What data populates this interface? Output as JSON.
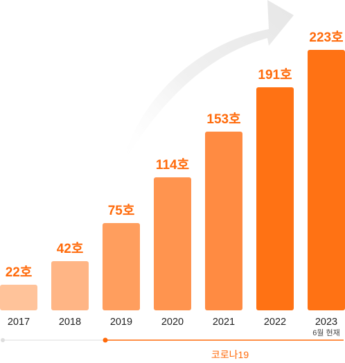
{
  "chart_data": {
    "type": "bar",
    "categories": [
      "2017",
      "2018",
      "2019",
      "2020",
      "2021",
      "2022",
      "2023"
    ],
    "values": [
      22,
      42,
      75,
      114,
      153,
      191,
      223
    ],
    "value_labels": [
      "22호",
      "42호",
      "75호",
      "114호",
      "153호",
      "191호",
      "223호"
    ],
    "category_note": {
      "category": "2023",
      "text": "6월 현재"
    },
    "bar_colors": [
      "#FFC39A",
      "#FFB585",
      "#FF9E5E",
      "#FF944F",
      "#FF8B42",
      "#FF7214",
      "#FF7214"
    ],
    "label_color": "#FF6A0A",
    "ylim": [
      0,
      223
    ],
    "grid": false,
    "legend": "none",
    "range_annotation": {
      "label": "코로나19",
      "from_category": "2019",
      "color": "#FF6A0A"
    },
    "baseline_color": "#E8E8E8",
    "trend_arrow": true
  }
}
